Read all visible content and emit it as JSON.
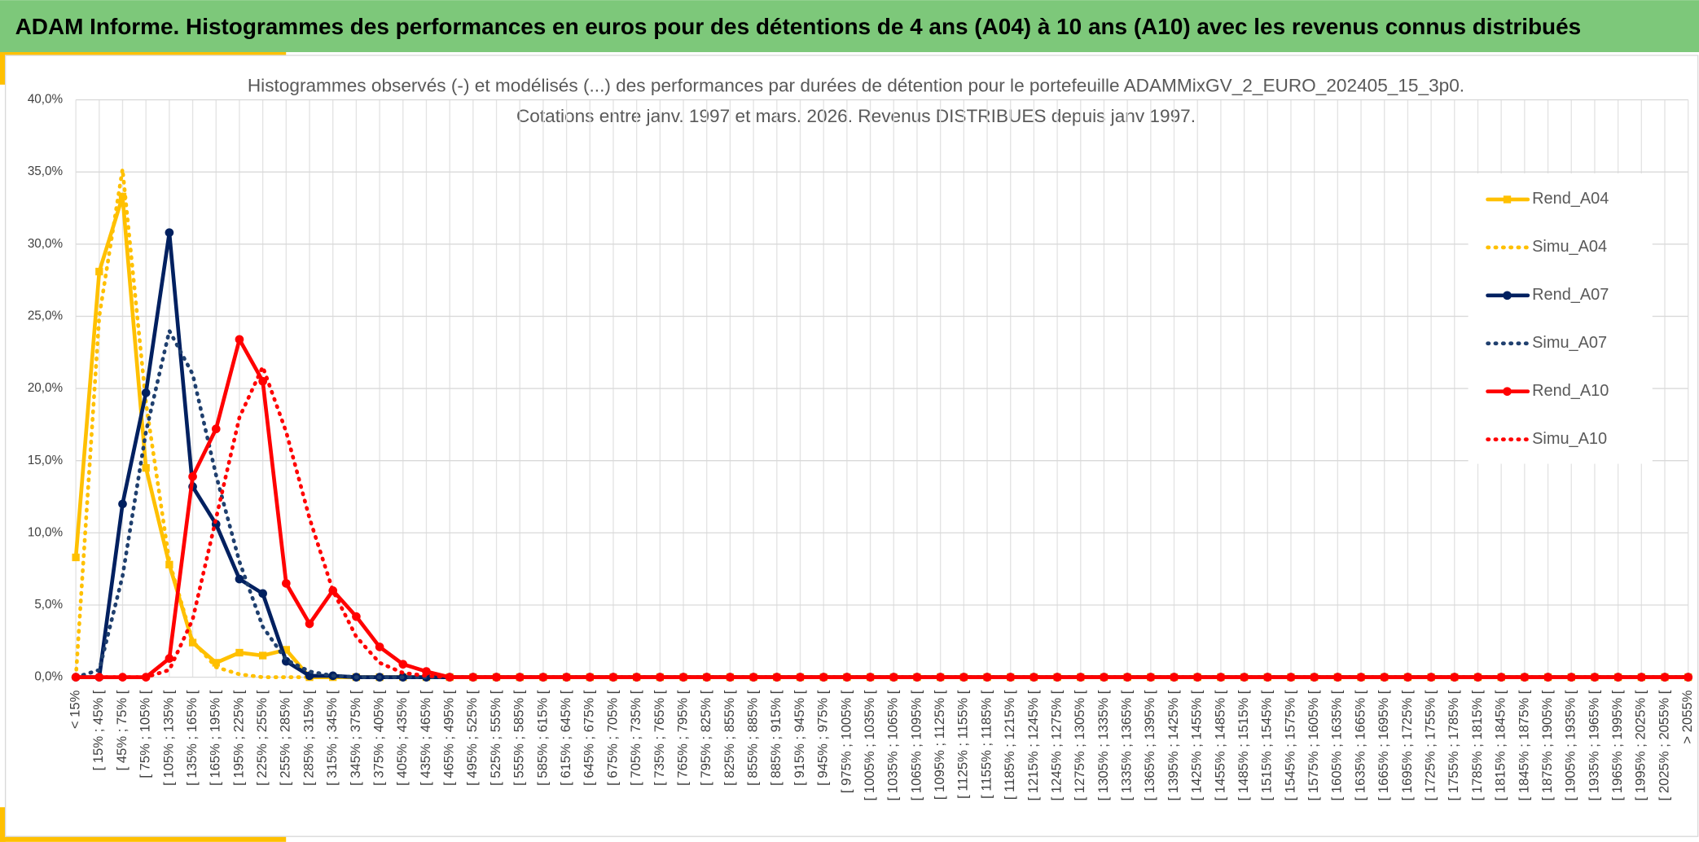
{
  "header": {
    "title": "ADAM Informe. Histogrammes des performances en euros pour des détentions de 4 ans (A04) à 10 ans (A10) avec les revenus connus distribués"
  },
  "chart_data": {
    "type": "line",
    "title": "Histogrammes observés (-) et modélisés (...) des performances par durées de détention pour le portefeuille ADAMMixGV_2_EURO_202405_15_3p0.",
    "subtitle": "Cotations entre janv. 1997 et mars. 2026. Revenus DISTRIBUES depuis janv 1997.",
    "categories": [
      "< 15%",
      "[ 15% ; 45% [",
      "[ 45% ; 75% [",
      "[ 75% ; 105% [",
      "[ 105% ; 135% [",
      "[ 135% ; 165% [",
      "[ 165% ; 195% [",
      "[ 195% ; 225% [",
      "[ 225% ; 255% [",
      "[ 255% ; 285% [",
      "[ 285% ; 315% [",
      "[ 315% ; 345% [",
      "[ 345% ; 375% [",
      "[ 375% ; 405% [",
      "[ 405% ; 435% [",
      "[ 435% ; 465% [",
      "[ 465% ; 495% [",
      "[ 495% ; 525% [",
      "[ 525% ; 555% [",
      "[ 555% ; 585% [",
      "[ 585% ; 615% [",
      "[ 615% ; 645% [",
      "[ 645% ; 675% [",
      "[ 675% ; 705% [",
      "[ 705% ; 735% [",
      "[ 735% ; 765% [",
      "[ 765% ; 795% [",
      "[ 795% ; 825% [",
      "[ 825% ; 855% [",
      "[ 855% ; 885% [",
      "[ 885% ; 915% [",
      "[ 915% ; 945% [",
      "[ 945% ; 975% [",
      "[ 975% ; 1005% [",
      "[ 1005% ; 1035% [",
      "[ 1035% ; 1065% [",
      "[ 1065% ; 1095% [",
      "[ 1095% ; 1125% [",
      "[ 1125% ; 1155% [",
      "[ 1155% ; 1185% [",
      "[ 1185% ; 1215% [",
      "[ 1215% ; 1245% [",
      "[ 1245% ; 1275% [",
      "[ 1275% ; 1305% [",
      "[ 1305% ; 1335% [",
      "[ 1335% ; 1365% [",
      "[ 1365% ; 1395% [",
      "[ 1395% ; 1425% [",
      "[ 1425% ; 1455% [",
      "[ 1455% ; 1485% [",
      "[ 1485% ; 1515% [",
      "[ 1515% ; 1545% [",
      "[ 1545% ; 1575% [",
      "[ 1575% ; 1605% [",
      "[ 1605% ; 1635% [",
      "[ 1635% ; 1665% [",
      "[ 1665% ; 1695% [",
      "[ 1695% ; 1725% [",
      "[ 1725% ; 1755% [",
      "[ 1755% ; 1785% [",
      "[ 1785% ; 1815% [",
      "[ 1815% ; 1845% [",
      "[ 1845% ; 1875% [",
      "[ 1875% ; 1905% [",
      "[ 1905% ; 1935% [",
      "[ 1935% ; 1965% [",
      "[ 1965% ; 1995% [",
      "[ 1995% ; 2025% [",
      "[ 2025% ; 2055% [",
      "> 2055%"
    ],
    "series": [
      {
        "name": "Rend_A04",
        "color": "#ffc000",
        "style": "solid",
        "marker": "square",
        "values": [
          8.3,
          28.1,
          33.3,
          14.5,
          7.8,
          2.4,
          1.0,
          1.7,
          1.5,
          1.9,
          0,
          0,
          0,
          0,
          0,
          0,
          0,
          0,
          0,
          0,
          0,
          0,
          0,
          0,
          0,
          0,
          0,
          0,
          0,
          0,
          0,
          0,
          0,
          0,
          0,
          0,
          0,
          0,
          0,
          0,
          0,
          0,
          0,
          0,
          0,
          0,
          0,
          0,
          0,
          0,
          0,
          0,
          0,
          0,
          0,
          0,
          0,
          0,
          0,
          0,
          0,
          0,
          0,
          0,
          0,
          0,
          0,
          0,
          0,
          0
        ]
      },
      {
        "name": "Simu_A04",
        "color": "#ffc000",
        "style": "dotted",
        "marker": "none",
        "values": [
          0,
          25,
          35.2,
          19,
          8,
          2.5,
          0.7,
          0.2,
          0,
          0,
          0,
          0,
          0,
          0,
          0,
          0,
          0,
          0,
          0,
          0,
          0,
          0,
          0,
          0,
          0,
          0,
          0,
          0,
          0,
          0,
          0,
          0,
          0,
          0,
          0,
          0,
          0,
          0,
          0,
          0,
          0,
          0,
          0,
          0,
          0,
          0,
          0,
          0,
          0,
          0,
          0,
          0,
          0,
          0,
          0,
          0,
          0,
          0,
          0,
          0,
          0,
          0,
          0,
          0,
          0,
          0,
          0,
          0,
          0,
          0
        ]
      },
      {
        "name": "Rend_A07",
        "color": "#002060",
        "style": "solid",
        "marker": "circle",
        "values": [
          0,
          0,
          12,
          19.7,
          30.8,
          13.2,
          10.6,
          6.8,
          5.8,
          1.1,
          0.1,
          0.1,
          0,
          0,
          0,
          0,
          0,
          0,
          0,
          0,
          0,
          0,
          0,
          0,
          0,
          0,
          0,
          0,
          0,
          0,
          0,
          0,
          0,
          0,
          0,
          0,
          0,
          0,
          0,
          0,
          0,
          0,
          0,
          0,
          0,
          0,
          0,
          0,
          0,
          0,
          0,
          0,
          0,
          0,
          0,
          0,
          0,
          0,
          0,
          0,
          0,
          0,
          0,
          0,
          0,
          0,
          0,
          0,
          0,
          0
        ]
      },
      {
        "name": "Simu_A07",
        "color": "#1f3f6e",
        "style": "dotted",
        "marker": "none",
        "values": [
          0,
          0.5,
          7,
          17,
          24,
          21,
          14,
          8,
          3.5,
          1.2,
          0.4,
          0.1,
          0,
          0,
          0,
          0,
          0,
          0,
          0,
          0,
          0,
          0,
          0,
          0,
          0,
          0,
          0,
          0,
          0,
          0,
          0,
          0,
          0,
          0,
          0,
          0,
          0,
          0,
          0,
          0,
          0,
          0,
          0,
          0,
          0,
          0,
          0,
          0,
          0,
          0,
          0,
          0,
          0,
          0,
          0,
          0,
          0,
          0,
          0,
          0,
          0,
          0,
          0,
          0,
          0,
          0,
          0,
          0,
          0,
          0
        ]
      },
      {
        "name": "Rend_A10",
        "color": "#ff0000",
        "style": "solid",
        "marker": "circle",
        "values": [
          0,
          0,
          0,
          0,
          1.3,
          13.9,
          17.2,
          23.4,
          20.5,
          6.5,
          3.7,
          6.0,
          4.2,
          2.1,
          0.9,
          0.4,
          0,
          0,
          0,
          0,
          0,
          0,
          0,
          0,
          0,
          0,
          0,
          0,
          0,
          0,
          0,
          0,
          0,
          0,
          0,
          0,
          0,
          0,
          0,
          0,
          0,
          0,
          0,
          0,
          0,
          0,
          0,
          0,
          0,
          0,
          0,
          0,
          0,
          0,
          0,
          0,
          0,
          0,
          0,
          0,
          0,
          0,
          0,
          0,
          0,
          0,
          0,
          0,
          0,
          0
        ]
      },
      {
        "name": "Simu_A10",
        "color": "#ff0000",
        "style": "dotted",
        "marker": "none",
        "values": [
          0,
          0,
          0,
          0,
          0.5,
          4,
          11,
          18,
          21.5,
          17,
          11,
          6,
          2.8,
          1.0,
          0.3,
          0.1,
          0,
          0,
          0,
          0,
          0,
          0,
          0,
          0,
          0,
          0,
          0,
          0,
          0,
          0,
          0,
          0,
          0,
          0,
          0,
          0,
          0,
          0,
          0,
          0,
          0,
          0,
          0,
          0,
          0,
          0,
          0,
          0,
          0,
          0,
          0,
          0,
          0,
          0,
          0,
          0,
          0,
          0,
          0,
          0,
          0,
          0,
          0,
          0,
          0,
          0,
          0,
          0,
          0,
          0
        ]
      }
    ],
    "ylim": [
      0,
      40
    ],
    "yticks": [
      {
        "value": 0,
        "label": "0,0%"
      },
      {
        "value": 5,
        "label": "5,0%"
      },
      {
        "value": 10,
        "label": "10,0%"
      },
      {
        "value": 15,
        "label": "15,0%"
      },
      {
        "value": 20,
        "label": "20,0%"
      },
      {
        "value": 25,
        "label": "25,0%"
      },
      {
        "value": 30,
        "label": "30,0%"
      },
      {
        "value": 35,
        "label": "35,0%"
      },
      {
        "value": 40,
        "label": "40,0%"
      }
    ],
    "grid": true,
    "legend": "right"
  }
}
